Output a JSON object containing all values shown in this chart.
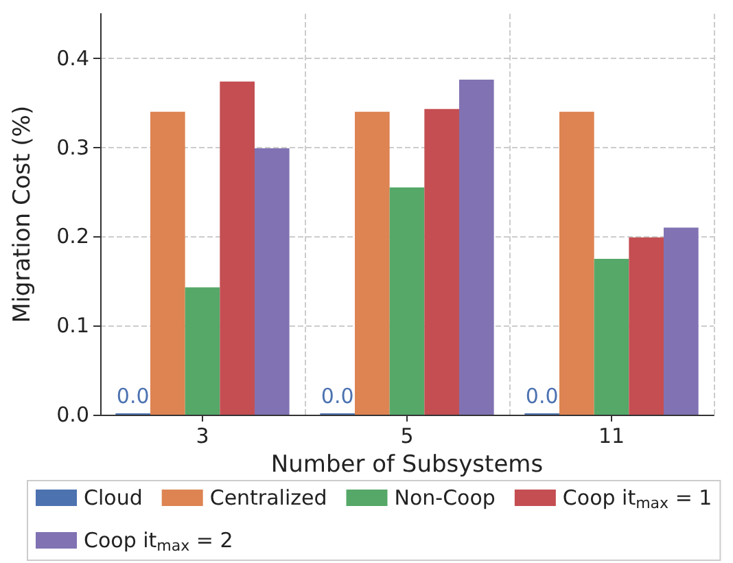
{
  "chart_data": {
    "type": "bar",
    "xlabel": "Number of Subsystems",
    "ylabel": "Migration Cost (%)",
    "categories": [
      "3",
      "5",
      "11"
    ],
    "series": [
      {
        "name": "Cloud",
        "color": "#4c72b0",
        "values": [
          0,
          0,
          0
        ],
        "value_labels": [
          "0.0",
          "0.0",
          "0.0"
        ]
      },
      {
        "name": "Centralized",
        "color": "#dd8452",
        "values": [
          0.34,
          0.34,
          0.34
        ]
      },
      {
        "name": "Non-Coop",
        "color": "#55a868",
        "values": [
          0.143,
          0.255,
          0.175
        ]
      },
      {
        "name": "Coop it$_{max}$ = 1",
        "color": "#c44e52",
        "values": [
          0.374,
          0.343,
          0.199
        ]
      },
      {
        "name": "Coop it$_{max}$ = 2",
        "color": "#8172b3",
        "values": [
          0.299,
          0.376,
          0.21
        ]
      }
    ],
    "ylim": [
      0,
      0.45
    ],
    "yticks": [
      {
        "value": 0,
        "label": "0.0"
      },
      {
        "value": 0.1,
        "label": "0.1"
      },
      {
        "value": 0.2,
        "label": "0.2"
      },
      {
        "value": 0.3,
        "label": "0.3"
      },
      {
        "value": 0.4,
        "label": "0.4"
      }
    ],
    "grid": true,
    "legend": "bottom"
  }
}
